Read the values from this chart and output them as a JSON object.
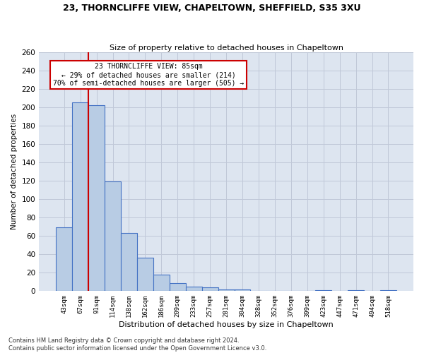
{
  "title1": "23, THORNCLIFFE VIEW, CHAPELTOWN, SHEFFIELD, S35 3XU",
  "title2": "Size of property relative to detached houses in Chapeltown",
  "xlabel": "Distribution of detached houses by size in Chapeltown",
  "ylabel": "Number of detached properties",
  "categories": [
    "43sqm",
    "67sqm",
    "91sqm",
    "114sqm",
    "138sqm",
    "162sqm",
    "186sqm",
    "209sqm",
    "233sqm",
    "257sqm",
    "281sqm",
    "304sqm",
    "328sqm",
    "352sqm",
    "376sqm",
    "399sqm",
    "423sqm",
    "447sqm",
    "471sqm",
    "494sqm",
    "518sqm"
  ],
  "values": [
    69,
    205,
    202,
    119,
    63,
    36,
    18,
    9,
    5,
    4,
    2,
    2,
    0,
    0,
    0,
    0,
    1,
    0,
    1,
    0,
    1
  ],
  "bar_color": "#b8cce4",
  "bar_edge_color": "#4472c4",
  "vline_color": "#cc0000",
  "annotation_text": "23 THORNCLIFFE VIEW: 85sqm\n← 29% of detached houses are smaller (214)\n70% of semi-detached houses are larger (505) →",
  "annotation_box_color": "#ffffff",
  "annotation_box_edge": "#cc0000",
  "grid_color": "#c0c8d8",
  "background_color": "#dde5f0",
  "ylim": [
    0,
    260
  ],
  "yticks": [
    0,
    20,
    40,
    60,
    80,
    100,
    120,
    140,
    160,
    180,
    200,
    220,
    240,
    260
  ],
  "footnote": "Contains HM Land Registry data © Crown copyright and database right 2024.\nContains public sector information licensed under the Open Government Licence v3.0."
}
